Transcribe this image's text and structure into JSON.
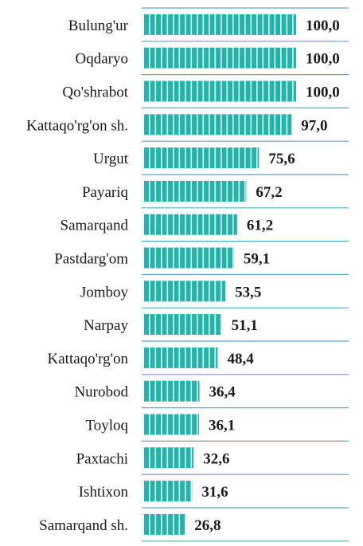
{
  "chart_data": {
    "type": "bar",
    "orientation": "horizontal",
    "title": "",
    "xlabel": "",
    "ylabel": "",
    "xlim": [
      0,
      100
    ],
    "grid": false,
    "legend": "none",
    "bar_color": "#1fb5aa",
    "bar_stripe_color": "#e8f8f6",
    "separator_color": "#5fa8c0",
    "categories": [
      "Bulung'ur",
      "Oqdaryo",
      "Qo'shrabot",
      "Kattaqo'rg'on sh.",
      "Urgut",
      "Payariq",
      "Samarqand",
      "Pastdarg'om",
      "Jomboy",
      "Narpay",
      "Kattaqo'rg'on",
      "Nurobod",
      "Toyloq",
      "Paxtachi",
      "Ishtixon",
      "Samarqand sh."
    ],
    "values": [
      100.0,
      100.0,
      100.0,
      97.0,
      75.6,
      67.2,
      61.2,
      59.1,
      53.5,
      51.1,
      48.4,
      36.4,
      36.1,
      32.6,
      31.6,
      26.8
    ],
    "value_labels": [
      "100,0",
      "100,0",
      "100,0",
      "97,0",
      "75,6",
      "67,2",
      "61,2",
      "59,1",
      "53,5",
      "51,1",
      "48,4",
      "36,4",
      "36,1",
      "32,6",
      "31,6",
      "26,8"
    ]
  }
}
